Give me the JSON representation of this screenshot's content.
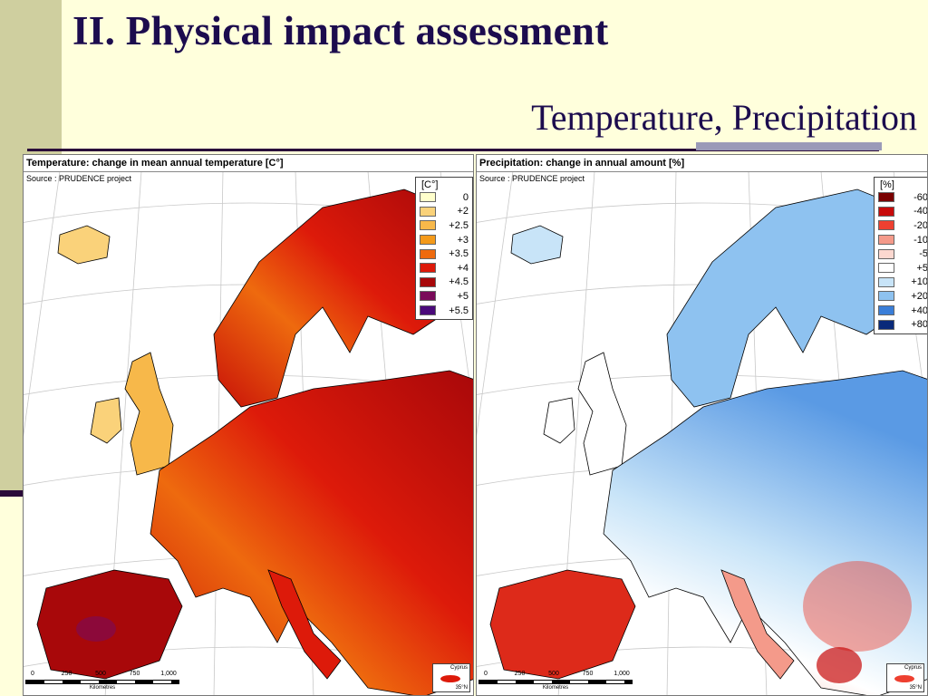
{
  "slide": {
    "title": "II. Physical impact assessment",
    "subtitle": "Temperature, Precipitation"
  },
  "maps": {
    "temperature": {
      "header": "Temperature: change in mean annual temperature [C°]",
      "source": "Source : PRUDENCE project",
      "legend_unit": "[C°]",
      "legend": [
        {
          "label": "0",
          "color": "#ffffcc"
        },
        {
          "label": "+2",
          "color": "#fad27a"
        },
        {
          "label": "+2.5",
          "color": "#f7b84a"
        },
        {
          "label": "+3",
          "color": "#f49a1a"
        },
        {
          "label": "+3.5",
          "color": "#ee6a0e"
        },
        {
          "label": "+4",
          "color": "#dd1a0a"
        },
        {
          "label": "+4.5",
          "color": "#a8080a"
        },
        {
          "label": "+5",
          "color": "#7a0a5a"
        },
        {
          "label": "+5.5",
          "color": "#4a0a7a"
        }
      ]
    },
    "precipitation": {
      "header": "Precipitation: change in annual amount [%]",
      "source": "Source : PRUDENCE project",
      "legend_unit": "[%]",
      "legend": [
        {
          "label": "-60",
          "color": "#7a0000"
        },
        {
          "label": "-40",
          "color": "#c80a0a"
        },
        {
          "label": "-20",
          "color": "#ee4030"
        },
        {
          "label": "-10",
          "color": "#f49a8a"
        },
        {
          "label": "-5",
          "color": "#fcd8d0"
        },
        {
          "label": "+5",
          "color": "#ffffff"
        },
        {
          "label": "+10",
          "color": "#c8e4f8"
        },
        {
          "label": "+20",
          "color": "#8ec2f0"
        },
        {
          "label": "+40",
          "color": "#3a7ed8"
        },
        {
          "label": "+80",
          "color": "#0a2a7a"
        }
      ]
    }
  },
  "scalebar": {
    "ticks": [
      "0",
      "250",
      "500",
      "750",
      "1,000"
    ],
    "unit": "Kilometres"
  },
  "inset": {
    "label": "Cyprus",
    "coord": "35°N"
  },
  "colors": {
    "title": "#1c0c4e",
    "background": "#ffffdc",
    "side_band": "#cfcf9f",
    "sea": "#ffffff"
  }
}
